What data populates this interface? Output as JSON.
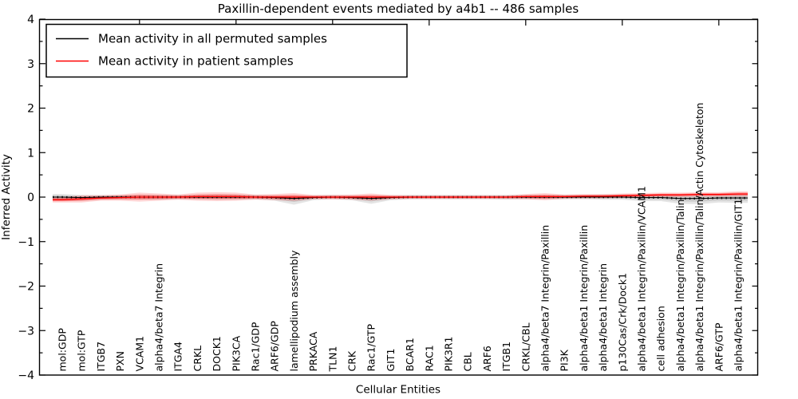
{
  "title": "Paxillin-dependent events mediated by a4b1 -- 486 samples",
  "axes": {
    "xlabel": "Cellular Entities",
    "ylabel": "Inferred Activity"
  },
  "legend": {
    "items": [
      {
        "label": "Mean activity in all permuted samples",
        "color": "#000000"
      },
      {
        "label": "Mean activity in patient samples",
        "color": "#ff0000"
      }
    ]
  },
  "chart_data": {
    "type": "line",
    "title": "Paxillin-dependent events mediated by a4b1 -- 486 samples",
    "xlabel": "Cellular Entities",
    "ylabel": "Inferred Activity",
    "ylim": [
      -4,
      4
    ],
    "yticks": [
      -4,
      -3,
      -2,
      -1,
      0,
      1,
      2,
      3,
      4
    ],
    "y_minor_step": 0.5,
    "x_major_tick_every": 5,
    "grid": false,
    "legend_position": "upper left",
    "categories": [
      "mol:GDP",
      "mol:GTP",
      "ITGB7",
      "PXN",
      "VCAM1",
      "alpha4/beta7 Integrin",
      "ITGA4",
      "CRKL",
      "DOCK1",
      "PIK3CA",
      "Rac1/GDP",
      "ARF6/GDP",
      "lamellipodium assembly",
      "PRKACA",
      "TLN1",
      "CRK",
      "Rac1/GTP",
      "GIT1",
      "BCAR1",
      "RAC1",
      "PIK3R1",
      "CBL",
      "ARF6",
      "ITGB1",
      "CRKL/CBL",
      "alpha4/beta7 Integrin/Paxillin",
      "PI3K",
      "alpha4/beta1 Integrin/Paxillin",
      "alpha4/beta1 Integrin",
      "p130Cas/Crk/Dock1",
      "alpha4/beta1 Integrin/Paxillin/VCAM1",
      "cell adhesion",
      "alpha4/beta1 Integrin/Paxillin/Talin",
      "alpha4/beta1 Integrin/Paxillin/Talin/Actin Cytoskeleton",
      "ARF6/GTP",
      "alpha4/beta1 Integrin/Paxillin/GIT1"
    ],
    "series": [
      {
        "name": "Mean activity in all permuted samples",
        "color": "#000000",
        "line_style": "solid with dotted marker overlay",
        "band_color": "#aaaaaa",
        "values": [
          0,
          -0.01,
          0,
          0,
          0,
          0,
          0,
          0,
          0,
          0,
          0,
          -0.01,
          -0.03,
          -0.01,
          0,
          -0.01,
          -0.03,
          -0.01,
          0,
          0,
          0,
          0,
          0,
          0,
          0,
          0,
          0,
          0,
          0,
          0,
          -0.01,
          -0.01,
          -0.03,
          -0.03,
          -0.02,
          -0.02
        ],
        "band_upper": [
          0.07,
          0.06,
          0.05,
          0.05,
          0.05,
          0.05,
          0.05,
          0.05,
          0.06,
          0.06,
          0.05,
          0.05,
          0.06,
          0.05,
          0.05,
          0.05,
          0.06,
          0.05,
          0.05,
          0.05,
          0.05,
          0.05,
          0.05,
          0.05,
          0.05,
          0.05,
          0.05,
          0.05,
          0.06,
          0.06,
          0.07,
          0.07,
          0.08,
          0.08,
          0.08,
          0.09
        ],
        "band_lower": [
          0.08,
          0.07,
          0.06,
          0.05,
          0.05,
          0.06,
          0.05,
          0.05,
          0.06,
          0.06,
          0.05,
          0.07,
          0.14,
          0.06,
          0.05,
          0.06,
          0.12,
          0.06,
          0.05,
          0.05,
          0.05,
          0.05,
          0.05,
          0.06,
          0.05,
          0.05,
          0.05,
          0.05,
          0.06,
          0.06,
          0.08,
          0.08,
          0.12,
          0.13,
          0.1,
          0.11
        ]
      },
      {
        "name": "Mean activity in patient samples",
        "color": "#ff0000",
        "line_style": "solid",
        "band_color": "#ff0000",
        "values": [
          -0.06,
          -0.04,
          -0.02,
          -0.01,
          0,
          0,
          0,
          0.01,
          0.01,
          0.01,
          0,
          0,
          0,
          0,
          0,
          0,
          0,
          0,
          0,
          0,
          0,
          0,
          0,
          0,
          0.01,
          0.01,
          0.01,
          0.02,
          0.02,
          0.03,
          0.04,
          0.05,
          0.05,
          0.06,
          0.06,
          0.07
        ],
        "band_upper": [
          0.06,
          0.08,
          0.06,
          0.07,
          0.1,
          0.08,
          0.06,
          0.09,
          0.1,
          0.09,
          0.06,
          0.07,
          0.09,
          0.05,
          0.05,
          0.06,
          0.08,
          0.05,
          0.04,
          0.04,
          0.04,
          0.04,
          0.04,
          0.04,
          0.06,
          0.08,
          0.05,
          0.05,
          0.05,
          0.05,
          0.05,
          0.05,
          0.05,
          0.05,
          0.05,
          0.06
        ],
        "band_lower": [
          0.06,
          0.08,
          0.06,
          0.07,
          0.1,
          0.08,
          0.06,
          0.09,
          0.1,
          0.09,
          0.06,
          0.07,
          0.09,
          0.05,
          0.05,
          0.06,
          0.08,
          0.05,
          0.04,
          0.04,
          0.04,
          0.04,
          0.04,
          0.04,
          0.06,
          0.08,
          0.05,
          0.05,
          0.05,
          0.05,
          0.05,
          0.05,
          0.05,
          0.05,
          0.05,
          0.06
        ]
      }
    ]
  }
}
